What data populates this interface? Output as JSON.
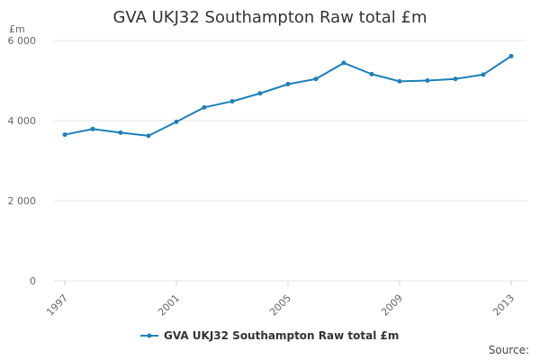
{
  "chart_data": {
    "type": "line",
    "title": "GVA UKJ32 Southampton Raw total £m",
    "ylabel": "£m",
    "xlabel": "",
    "x": [
      1997,
      1998,
      1999,
      2000,
      2001,
      2002,
      2003,
      2004,
      2005,
      2006,
      2007,
      2008,
      2009,
      2010,
      2011,
      2012,
      2013
    ],
    "xticks": [
      "1997",
      "2001",
      "2005",
      "2009",
      "2013"
    ],
    "yticks": [
      "0",
      "2 000",
      "4 000",
      "6 000"
    ],
    "ylim": [
      0,
      6000
    ],
    "grid": true,
    "legend_position": "bottom",
    "series": [
      {
        "name": "GVA UKJ32 Southampton Raw total £m",
        "color": "#1f7fb6",
        "values": [
          3650,
          3790,
          3700,
          3620,
          3970,
          4330,
          4480,
          4680,
          4910,
          5040,
          5440,
          5160,
          4980,
          5000,
          5040,
          5150,
          5610
        ]
      }
    ]
  },
  "footer": {
    "source_label": "Source:"
  }
}
